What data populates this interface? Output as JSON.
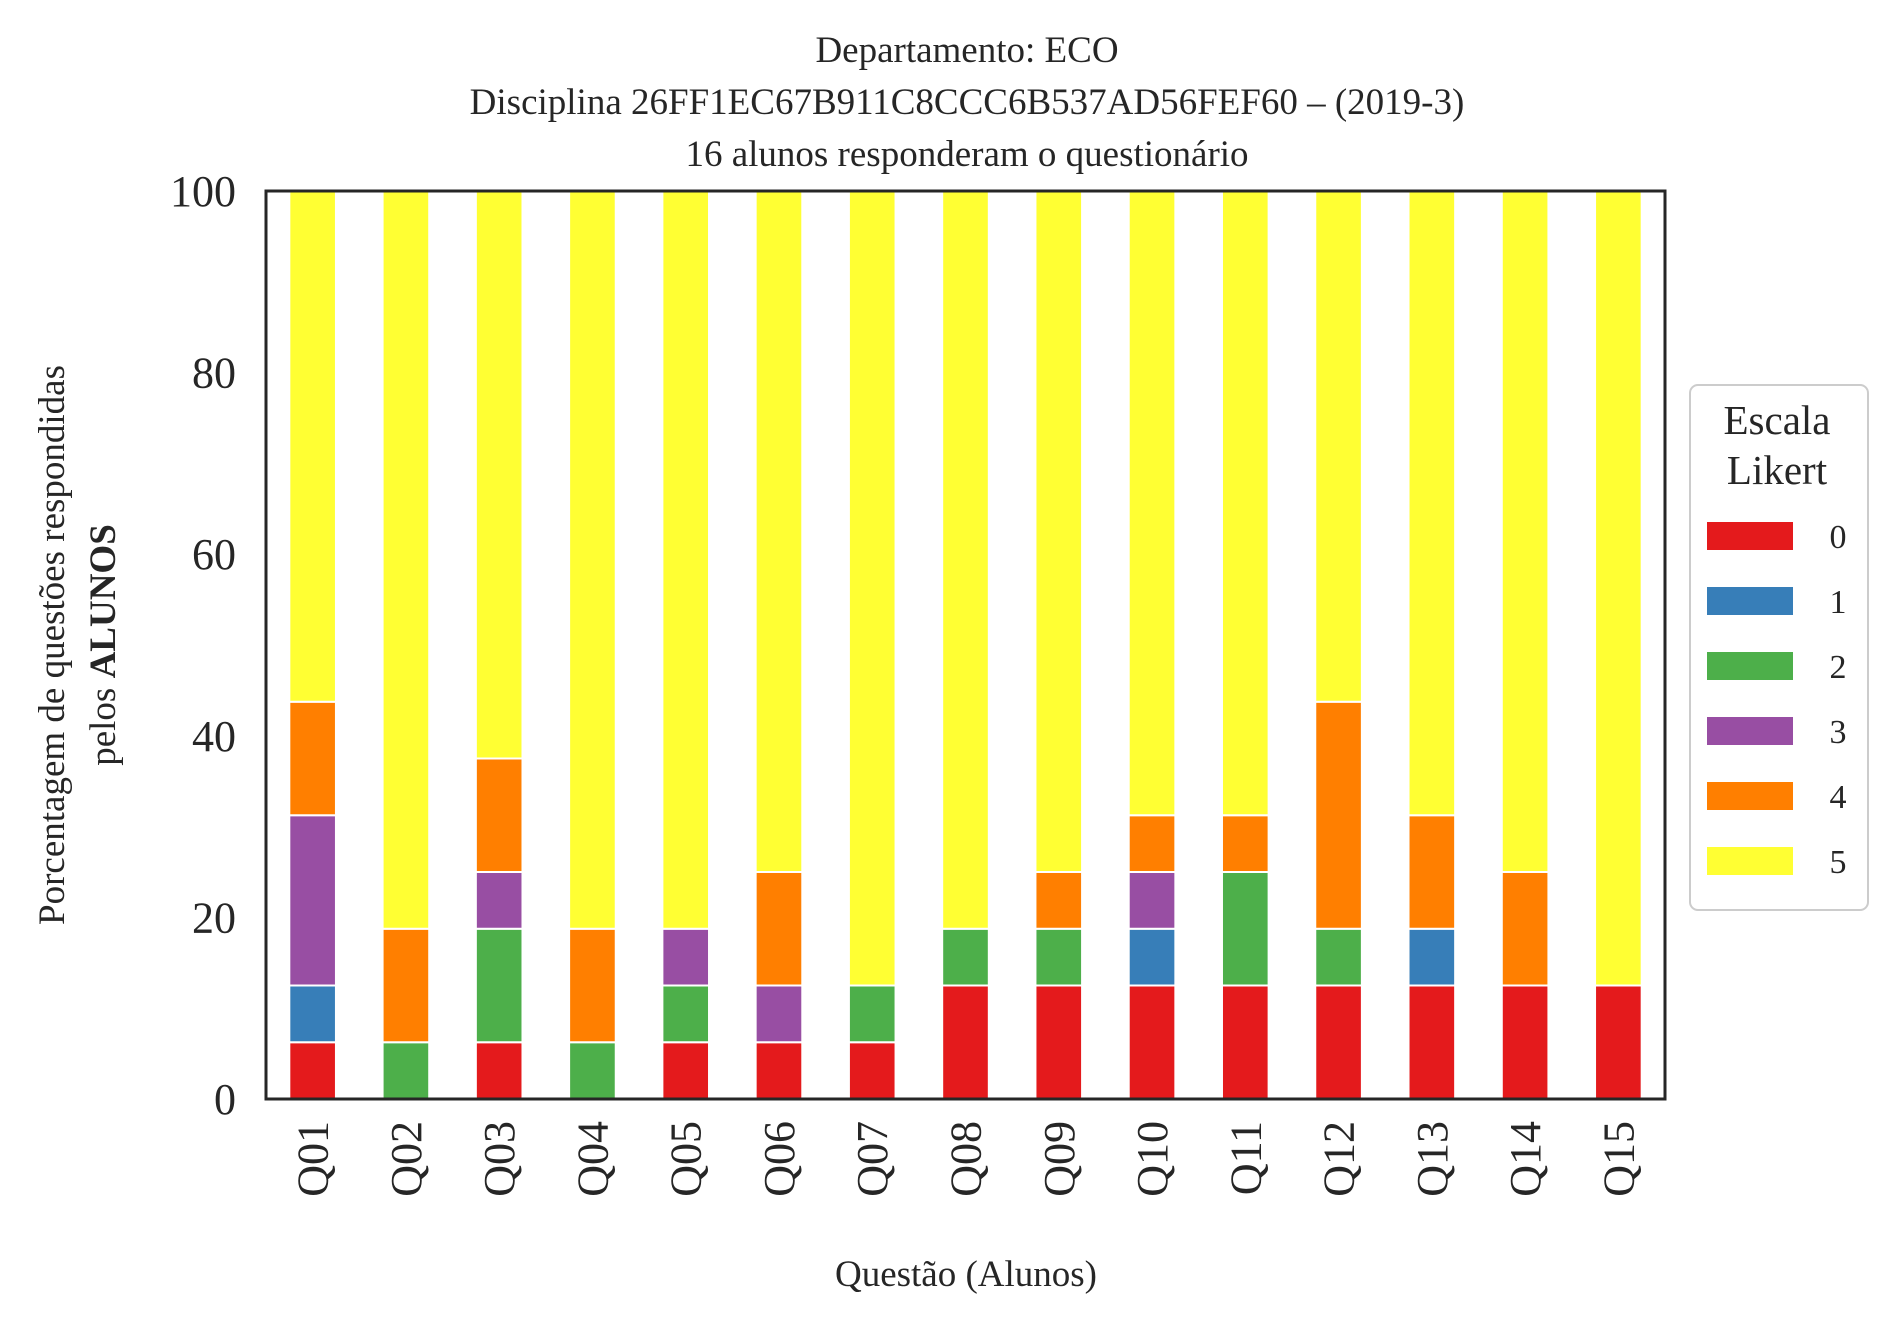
{
  "chart_data": {
    "type": "bar",
    "stacked": true,
    "title_lines": [
      "Departamento: ECO",
      "Disciplina 26FF1EC67B911C8CCC6B537AD56FEF60 – (2019-3)",
      "16 alunos responderam o questionário"
    ],
    "xlabel": "Questão (Alunos)",
    "ylabel_line1": "Porcentagem de questões respondidas",
    "ylabel_line2_prefix": "pelos ",
    "ylabel_line2_bold": "ALUNOS",
    "ylim": [
      0,
      100
    ],
    "yticks": [
      "0",
      "20",
      "40",
      "60",
      "80",
      "100"
    ],
    "grid": false,
    "categories": [
      "Q01",
      "Q02",
      "Q03",
      "Q04",
      "Q05",
      "Q06",
      "Q07",
      "Q08",
      "Q09",
      "Q10",
      "Q11",
      "Q12",
      "Q13",
      "Q14",
      "Q15"
    ],
    "legend": {
      "title_line1": "Escala",
      "title_line2": "Likert",
      "placement": "right"
    },
    "series": [
      {
        "name": "0",
        "color": "#e41a1c",
        "values": [
          6.25,
          0,
          6.25,
          0,
          6.25,
          6.25,
          6.25,
          12.5,
          12.5,
          12.5,
          12.5,
          12.5,
          12.5,
          12.5,
          12.5
        ]
      },
      {
        "name": "1",
        "color": "#377eb8",
        "values": [
          6.25,
          0,
          0,
          0,
          0,
          0,
          0,
          0,
          0,
          6.25,
          0,
          0,
          6.25,
          0,
          0
        ]
      },
      {
        "name": "2",
        "color": "#4daf4a",
        "values": [
          0,
          6.25,
          12.5,
          6.25,
          6.25,
          0,
          6.25,
          6.25,
          6.25,
          0,
          12.5,
          6.25,
          0,
          0,
          0
        ]
      },
      {
        "name": "3",
        "color": "#984ea3",
        "values": [
          18.75,
          0,
          6.25,
          0,
          6.25,
          6.25,
          0,
          0,
          0,
          6.25,
          0,
          0,
          0,
          0,
          0
        ]
      },
      {
        "name": "4",
        "color": "#ff7f00",
        "values": [
          12.5,
          12.5,
          12.5,
          12.5,
          0,
          12.5,
          0,
          0,
          6.25,
          6.25,
          6.25,
          25,
          12.5,
          12.5,
          0
        ]
      },
      {
        "name": "5",
        "color": "#ffff33",
        "values": [
          56.25,
          81.25,
          62.5,
          81.25,
          81.25,
          75,
          87.5,
          81.25,
          75,
          68.75,
          68.75,
          56.25,
          68.75,
          75,
          87.5
        ]
      }
    ]
  }
}
